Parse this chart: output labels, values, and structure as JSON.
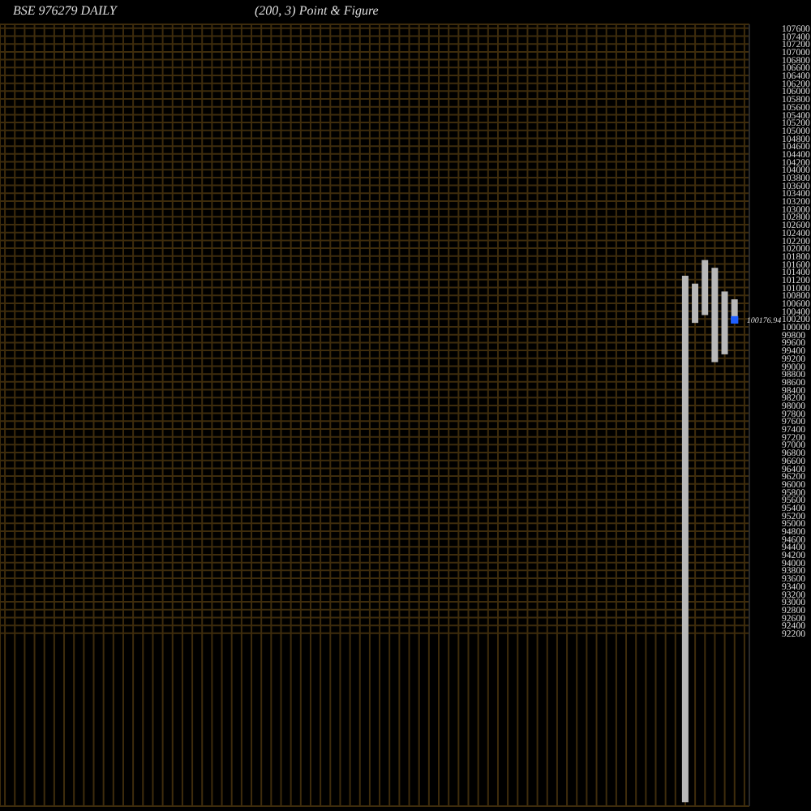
{
  "chart_data": {
    "type": "bar",
    "title": "BSE 976279 DAILY",
    "subtitle": "(200, 3) Point & Figure",
    "categories": [
      null,
      null,
      null,
      null,
      null,
      null,
      null,
      null,
      null,
      null,
      null,
      null,
      null,
      null,
      null,
      null,
      null,
      null,
      null,
      null,
      null,
      null,
      null,
      null,
      null,
      null,
      null,
      null,
      null,
      null,
      null,
      null,
      null,
      null,
      null,
      null,
      null,
      null,
      null,
      null,
      null,
      null,
      null,
      null,
      null,
      null,
      null,
      null,
      null,
      null,
      null,
      null,
      null,
      null,
      null,
      null,
      null,
      null,
      null,
      null,
      null,
      null,
      null,
      null,
      null,
      null,
      null,
      null,
      null,
      null,
      null,
      null,
      null,
      null,
      null,
      null
    ],
    "series": [
      {
        "color": "#b8b8b8",
        "base": [
          null,
          null,
          null,
          null,
          null,
          null,
          null,
          null,
          null,
          null,
          null,
          null,
          null,
          null,
          null,
          null,
          null,
          null,
          null,
          null,
          null,
          null,
          null,
          null,
          null,
          null,
          null,
          null,
          null,
          null,
          null,
          null,
          null,
          null,
          null,
          null,
          null,
          null,
          null,
          null,
          null,
          null,
          null,
          null,
          null,
          null,
          null,
          null,
          null,
          null,
          null,
          null,
          null,
          null,
          null,
          null,
          null,
          null,
          null,
          null,
          null,
          null,
          null,
          null,
          null,
          null,
          null,
          null,
          null,
          87900,
          100100,
          100300,
          99100,
          99300,
          100100,
          null
        ],
        "values": [
          null,
          null,
          null,
          null,
          null,
          null,
          null,
          null,
          null,
          null,
          null,
          null,
          null,
          null,
          null,
          null,
          null,
          null,
          null,
          null,
          null,
          null,
          null,
          null,
          null,
          null,
          null,
          null,
          null,
          null,
          null,
          null,
          null,
          null,
          null,
          null,
          null,
          null,
          null,
          null,
          null,
          null,
          null,
          null,
          null,
          null,
          null,
          null,
          null,
          null,
          null,
          null,
          null,
          null,
          null,
          null,
          null,
          null,
          null,
          null,
          null,
          null,
          null,
          null,
          null,
          null,
          null,
          null,
          null,
          13400,
          1000,
          1400,
          2400,
          1600,
          600,
          null
        ]
      },
      {
        "type": "scatter",
        "color": "#1f5fff",
        "values": [
          null,
          null,
          null,
          null,
          null,
          null,
          null,
          null,
          null,
          null,
          null,
          null,
          null,
          null,
          null,
          null,
          null,
          null,
          null,
          null,
          null,
          null,
          null,
          null,
          null,
          null,
          null,
          null,
          null,
          null,
          null,
          null,
          null,
          null,
          null,
          null,
          null,
          null,
          null,
          null,
          null,
          null,
          null,
          null,
          null,
          null,
          null,
          null,
          null,
          null,
          null,
          null,
          null,
          null,
          null,
          null,
          null,
          null,
          null,
          null,
          null,
          null,
          null,
          null,
          null,
          null,
          null,
          null,
          null,
          null,
          null,
          null,
          null,
          null,
          100176.94,
          null
        ],
        "value_labels": [
          null,
          null,
          null,
          null,
          null,
          null,
          null,
          null,
          null,
          null,
          null,
          null,
          null,
          null,
          null,
          null,
          null,
          null,
          null,
          null,
          null,
          null,
          null,
          null,
          null,
          null,
          null,
          null,
          null,
          null,
          null,
          null,
          null,
          null,
          null,
          null,
          null,
          null,
          null,
          null,
          null,
          null,
          null,
          null,
          null,
          null,
          null,
          null,
          null,
          null,
          null,
          null,
          null,
          null,
          null,
          null,
          null,
          null,
          null,
          null,
          null,
          null,
          null,
          null,
          null,
          null,
          null,
          null,
          null,
          null,
          null,
          null,
          null,
          null,
          "100176.94",
          null
        ]
      }
    ],
    "ylim": [
      87800,
      107700
    ],
    "yticks": [
      92200,
      92400,
      92600,
      92800,
      93000,
      93200,
      93400,
      93600,
      93800,
      94000,
      94200,
      94400,
      94600,
      94800,
      95000,
      95200,
      95400,
      95600,
      95800,
      96000,
      96200,
      96400,
      96600,
      96800,
      97000,
      97200,
      97400,
      97600,
      97800,
      98000,
      98200,
      98400,
      98600,
      98800,
      99000,
      99200,
      99400,
      99600,
      99800,
      100000,
      100200,
      100400,
      100600,
      100800,
      101000,
      101200,
      101400,
      101600,
      101800,
      102000,
      102200,
      102400,
      102600,
      102800,
      103000,
      103200,
      103400,
      103600,
      103800,
      104000,
      104200,
      104400,
      104600,
      104800,
      105000,
      105200,
      105400,
      105600,
      105800,
      106000,
      106200,
      106400,
      106600,
      106800,
      107000,
      107200,
      107400,
      107600
    ],
    "grid": true,
    "tick_labels": "y",
    "marker": "square"
  }
}
